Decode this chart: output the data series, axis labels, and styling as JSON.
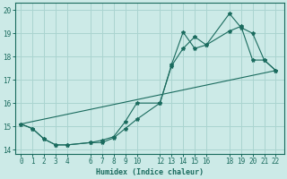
{
  "xlabel": "Humidex (Indice chaleur)",
  "background_color": "#cceae7",
  "grid_color": "#aad4d0",
  "line_color": "#1a6b5e",
  "xlim": [
    -0.5,
    22.7
  ],
  "ylim": [
    13.8,
    20.3
  ],
  "xticks": [
    0,
    1,
    2,
    3,
    4,
    6,
    7,
    8,
    9,
    10,
    12,
    13,
    14,
    15,
    16,
    18,
    19,
    20,
    21,
    22
  ],
  "yticks": [
    14,
    15,
    16,
    17,
    18,
    19,
    20
  ],
  "line1_x": [
    0,
    1,
    2,
    3,
    4,
    6,
    7,
    8,
    9,
    10,
    12,
    13,
    14,
    15,
    16,
    18,
    19,
    20,
    21,
    22
  ],
  "line1_y": [
    15.1,
    14.9,
    14.45,
    14.2,
    14.2,
    14.3,
    14.3,
    14.5,
    14.9,
    15.3,
    16.0,
    17.6,
    18.35,
    18.85,
    18.5,
    19.1,
    19.3,
    17.85,
    17.85,
    17.4
  ],
  "line2_x": [
    0,
    1,
    2,
    3,
    4,
    6,
    7,
    8,
    9,
    10,
    12,
    13,
    14,
    15,
    16,
    18,
    19,
    20,
    21,
    22
  ],
  "line2_y": [
    15.1,
    14.9,
    14.45,
    14.2,
    14.2,
    14.3,
    14.4,
    14.55,
    15.2,
    16.0,
    16.0,
    17.65,
    19.05,
    18.35,
    18.5,
    19.85,
    19.25,
    19.0,
    17.85,
    17.4
  ],
  "line3_x": [
    0,
    22
  ],
  "line3_y": [
    15.1,
    17.4
  ]
}
